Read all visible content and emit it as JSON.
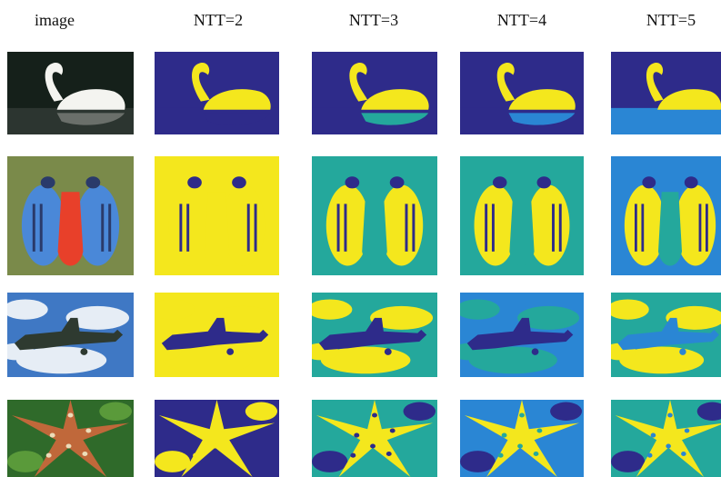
{
  "header": {
    "columns": [
      "image",
      "NTT=2",
      "NTT=3",
      "NTT=4",
      "NTT=5"
    ]
  }
}
